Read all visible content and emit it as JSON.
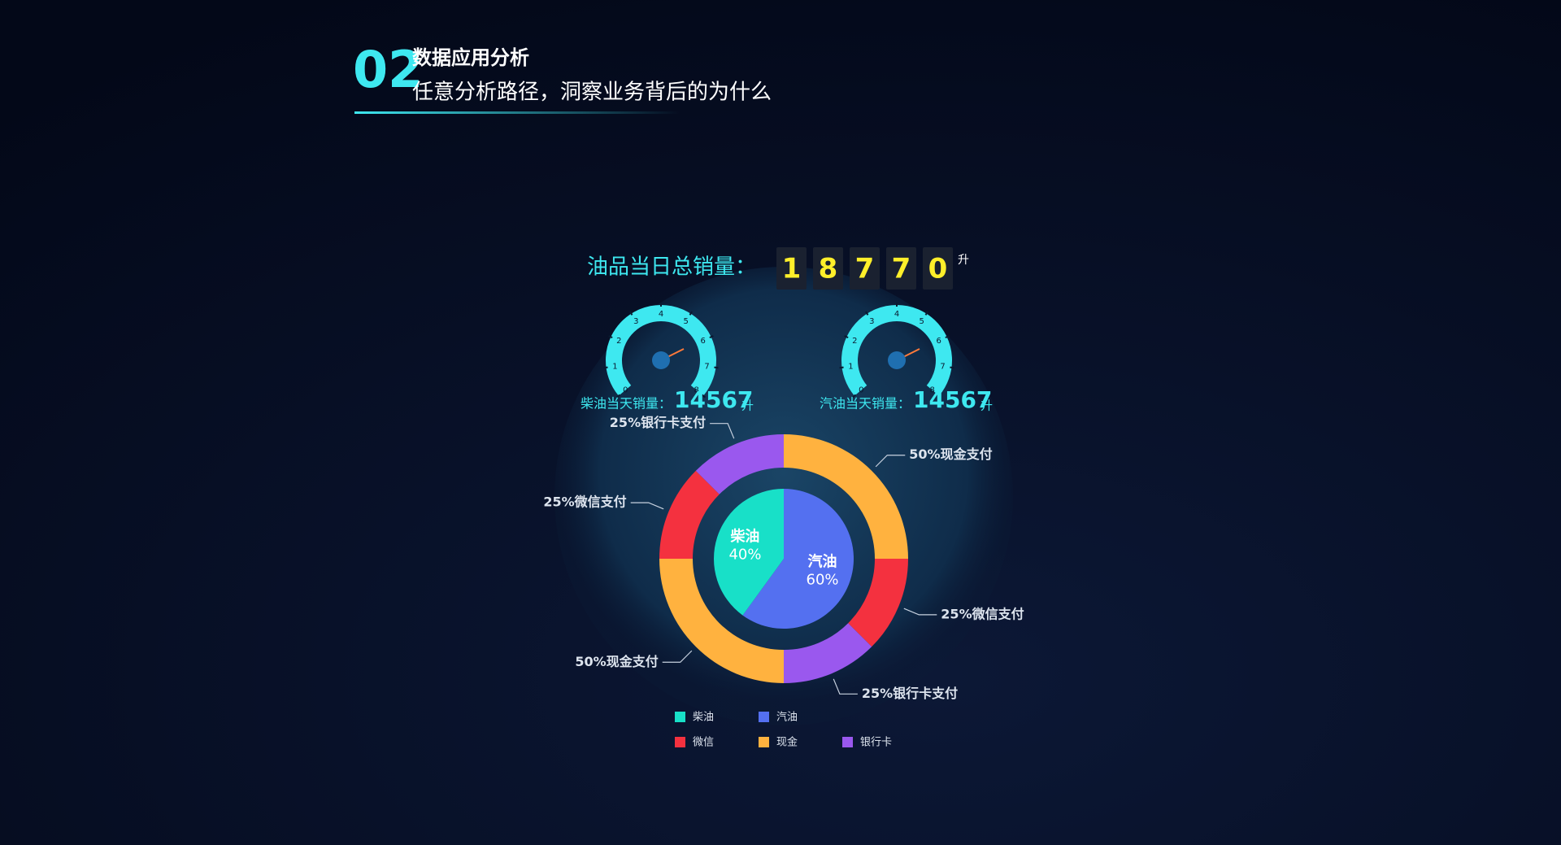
{
  "header": {
    "number": "02",
    "title": "数据应用分析",
    "subtitle": "任意分析路径，洞察业务背后的为什么"
  },
  "total": {
    "label": "油品当日总销量：",
    "digits": [
      "1",
      "8",
      "7",
      "7",
      "0"
    ],
    "unit": "升"
  },
  "gauges": [
    {
      "label": "柴油当天销量：",
      "value": 14567,
      "unit": "升",
      "ticks": [
        0,
        1,
        2,
        3,
        4,
        5,
        6,
        7,
        8
      ]
    },
    {
      "label": "汽油当天销量：",
      "value": 14567,
      "unit": "升",
      "ticks": [
        0,
        1,
        2,
        3,
        4,
        5,
        6,
        7,
        8
      ]
    }
  ],
  "chart_data": {
    "type": "donut",
    "inner": {
      "categories": [
        "汽油",
        "柴油"
      ],
      "values": [
        60,
        40
      ],
      "value_labels": [
        "60%",
        "40%"
      ],
      "colors": [
        "#5470f0",
        "#18e0c8"
      ]
    },
    "outer": [
      {
        "values": [
          50,
          25,
          25
        ],
        "value_labels": [
          "50%现金支付",
          "25%微信支付",
          "25%银行卡支付"
        ],
        "colors": [
          "#ffb23f",
          "#f4313f",
          "#9a58ee"
        ]
      },
      {
        "values": [
          50,
          25,
          25
        ],
        "value_labels": [
          "50%现金支付",
          "25%微信支付",
          "25%银行卡支付"
        ],
        "colors": [
          "#ffb23f",
          "#f4313f",
          "#9a58ee"
        ]
      }
    ],
    "legend": [
      {
        "name": "柴油",
        "color": "#18e0c8"
      },
      {
        "name": "汽油",
        "color": "#5470f0"
      },
      {
        "name": "微信",
        "color": "#f4313f"
      },
      {
        "name": "现金",
        "color": "#ffb23f"
      },
      {
        "name": "银行卡",
        "color": "#9a58ee"
      }
    ]
  }
}
